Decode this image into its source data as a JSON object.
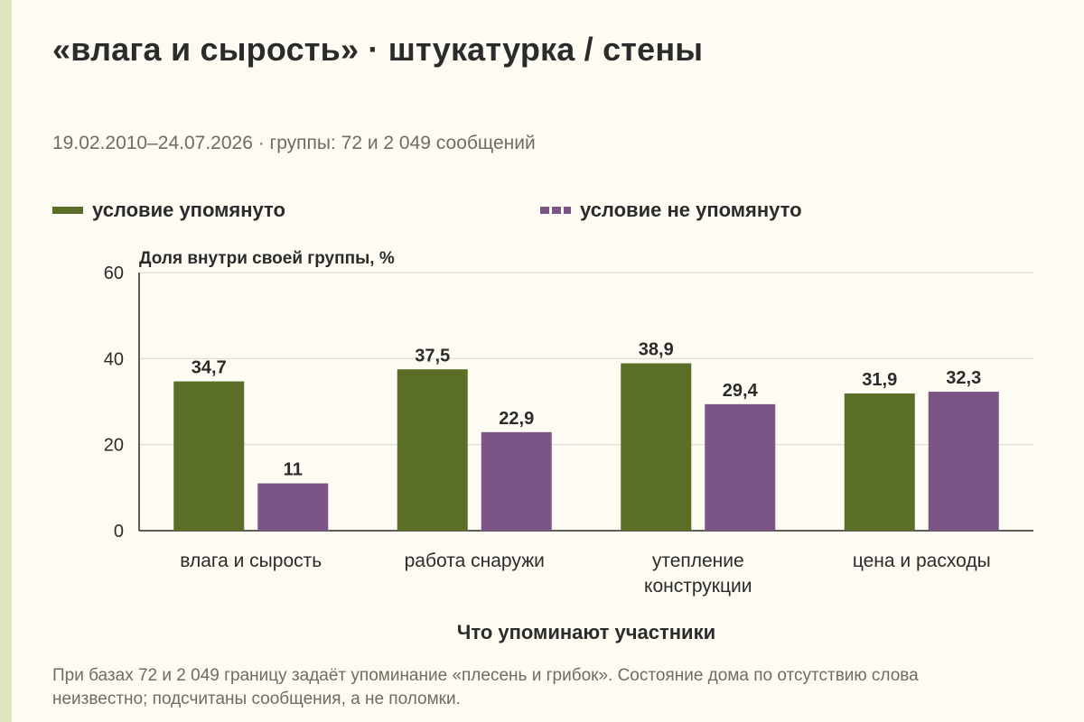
{
  "header": {
    "title": "«влага и сырость» · штукатурка / стены",
    "subtitle": "19.02.2010–24.07.2026 · группы: 72 и 2 049 сообщений"
  },
  "legend": [
    {
      "label": "условие упомянуто",
      "color": "#5a6e28",
      "style": "solid"
    },
    {
      "label": "условие не упомянуто",
      "color": "#7a5585",
      "style": "dashed"
    }
  ],
  "chart_data": {
    "type": "bar",
    "ylabel": "Доля внутри своей группы, %",
    "xlabel": "Что упоминают участники",
    "ylim": [
      0,
      60
    ],
    "yticks": [
      0,
      20,
      40,
      60
    ],
    "grid": true,
    "legend_position": "top",
    "categories": [
      [
        "влага и сырость"
      ],
      [
        "работа снаружи"
      ],
      [
        "утепление",
        "конструкции"
      ],
      [
        "цена и расходы"
      ]
    ],
    "series": [
      {
        "name": "условие упомянуто",
        "color": "#5a6e28",
        "values": [
          34.7,
          37.5,
          38.9,
          31.9
        ],
        "labels": [
          "34,7",
          "37,5",
          "38,9",
          "31,9"
        ]
      },
      {
        "name": "условие не упомянуто",
        "color": "#7a5585",
        "values": [
          11,
          22.9,
          29.4,
          32.3
        ],
        "labels": [
          "11",
          "22,9",
          "29,4",
          "32,3"
        ]
      }
    ]
  },
  "footnote": "При базах 72 и 2 049 границу задаёт упоминание «плесень и грибок». Состояние дома по отсутствию слова неизвестно; подсчитаны сообщения, а не поломки."
}
